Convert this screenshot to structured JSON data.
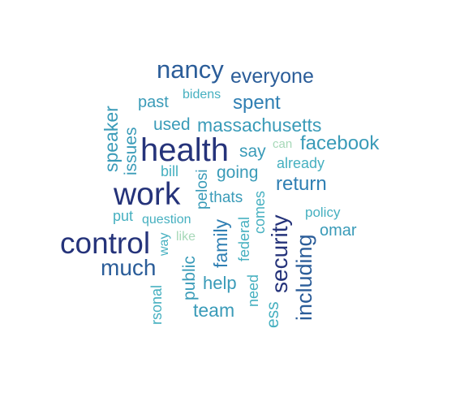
{
  "palette": {
    "darkest": "#25337a",
    "dark": "#2b5d99",
    "mid": "#2f7fb3",
    "teal": "#3a9bb8",
    "light": "#46b0c0",
    "pale": "#a6d8b8"
  },
  "words": [
    {
      "text": "health",
      "color": "darkest"
    },
    {
      "text": "work",
      "color": "darkest"
    },
    {
      "text": "control",
      "color": "darkest"
    },
    {
      "text": "security",
      "color": "darkest"
    },
    {
      "text": "nancy",
      "color": "dark"
    },
    {
      "text": "including",
      "color": "dark"
    },
    {
      "text": "everyone",
      "color": "dark"
    },
    {
      "text": "much",
      "color": "dark"
    },
    {
      "text": "spent",
      "color": "mid"
    },
    {
      "text": "return",
      "color": "mid"
    },
    {
      "text": "family",
      "color": "mid"
    },
    {
      "text": "massachusetts",
      "color": "teal"
    },
    {
      "text": "facebook",
      "color": "teal"
    },
    {
      "text": "used",
      "color": "teal"
    },
    {
      "text": "speaker",
      "color": "teal"
    },
    {
      "text": "issues",
      "color": "teal"
    },
    {
      "text": "past",
      "color": "teal"
    },
    {
      "text": "say",
      "color": "teal"
    },
    {
      "text": "going",
      "color": "teal"
    },
    {
      "text": "omar",
      "color": "teal"
    },
    {
      "text": "help",
      "color": "teal"
    },
    {
      "text": "team",
      "color": "teal"
    },
    {
      "text": "public",
      "color": "teal"
    },
    {
      "text": "thats",
      "color": "teal"
    },
    {
      "text": "pelosi",
      "color": "teal"
    },
    {
      "text": "bidens",
      "color": "light"
    },
    {
      "text": "bill",
      "color": "light"
    },
    {
      "text": "put",
      "color": "light"
    },
    {
      "text": "question",
      "color": "light"
    },
    {
      "text": "way",
      "color": "light"
    },
    {
      "text": "already",
      "color": "light"
    },
    {
      "text": "policy",
      "color": "light"
    },
    {
      "text": "comes",
      "color": "light"
    },
    {
      "text": "federal",
      "color": "light"
    },
    {
      "text": "need",
      "color": "light"
    },
    {
      "text": "rsonal",
      "color": "light"
    },
    {
      "text": "ess",
      "color": "light"
    },
    {
      "text": "can",
      "color": "pale"
    },
    {
      "text": "like",
      "color": "pale"
    }
  ]
}
